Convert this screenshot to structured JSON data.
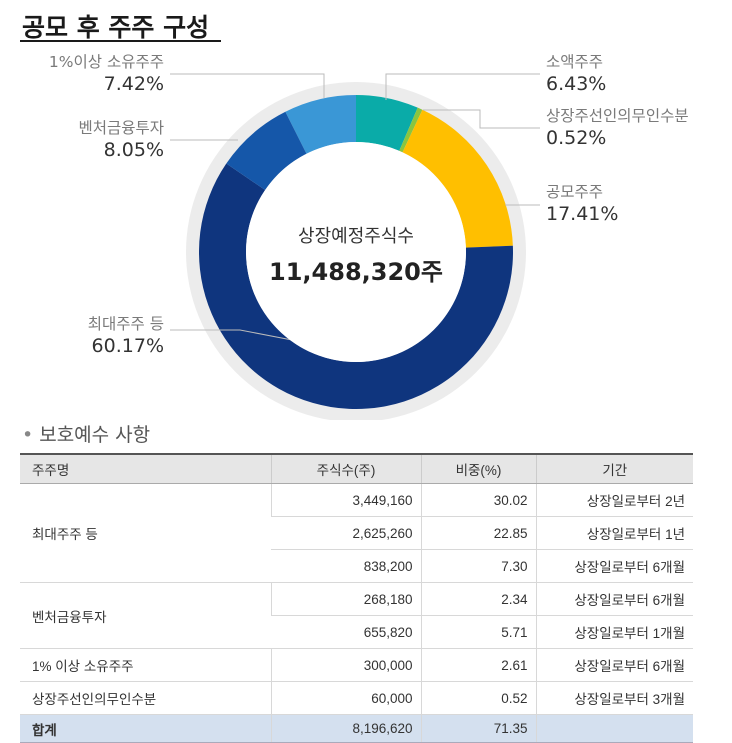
{
  "title": "공모 후 주주 구성",
  "center": {
    "label": "상장예정주식수",
    "value": "11,488,320주"
  },
  "chart_data": {
    "type": "pie",
    "categories": [
      "소액주주",
      "상장주선인의무인수분",
      "공모주주",
      "최대주주 등",
      "벤처금융투자",
      "1%이상 소유주주"
    ],
    "values": [
      6.43,
      0.52,
      17.41,
      60.17,
      8.05,
      7.42
    ],
    "labels_pct": [
      "6.43%",
      "0.52%",
      "17.41%",
      "60.17%",
      "8.05%",
      "7.42%"
    ],
    "colors": [
      "#0aaba8",
      "#8ac53f",
      "#ffbf00",
      "#0f357e",
      "#1557a9",
      "#3a97d6"
    ]
  },
  "section_title": "보호예수 사항",
  "table": {
    "headers": [
      "주주명",
      "주식수(주)",
      "비중(%)",
      "기간"
    ],
    "groups": [
      {
        "name": "최대주주 등",
        "rows": [
          {
            "shares": "3,449,160",
            "pct": "30.02",
            "period": "상장일로부터 2년"
          },
          {
            "shares": "2,625,260",
            "pct": "22.85",
            "period": "상장일로부터 1년"
          },
          {
            "shares": "838,200",
            "pct": "7.30",
            "period": "상장일로부터 6개월"
          }
        ]
      },
      {
        "name": "벤처금융투자",
        "rows": [
          {
            "shares": "268,180",
            "pct": "2.34",
            "period": "상장일로부터 6개월"
          },
          {
            "shares": "655,820",
            "pct": "5.71",
            "period": "상장일로부터 1개월"
          }
        ]
      },
      {
        "name": "1% 이상 소유주주",
        "rows": [
          {
            "shares": "300,000",
            "pct": "2.61",
            "period": "상장일로부터 6개월"
          }
        ]
      },
      {
        "name": "상장주선인의무인수분",
        "rows": [
          {
            "shares": "60,000",
            "pct": "0.52",
            "period": "상장일로부터 3개월"
          }
        ]
      }
    ],
    "total": {
      "name": "합계",
      "shares": "8,196,620",
      "pct": "71.35",
      "period": ""
    }
  }
}
